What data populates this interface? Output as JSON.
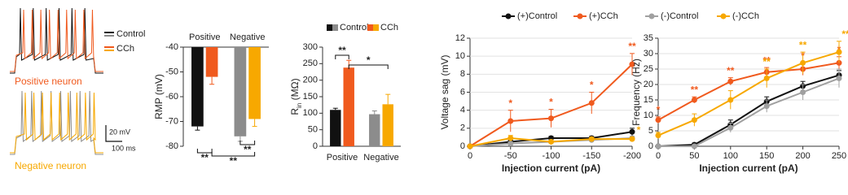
{
  "trace_panel": {
    "legend": [
      "Control",
      "CCh"
    ],
    "positive_label": "Positive neuron",
    "negative_label": "Negative neuron",
    "scale_v": "20 mV",
    "scale_t": "100 ms"
  },
  "chart_data": [
    {
      "type": "bar",
      "ylabel": "RMP (mV)",
      "category_labels_position": "top",
      "categories": [
        "Positive",
        "Negative"
      ],
      "series": [
        {
          "colors": [
            "#111111",
            "#8c8c8c"
          ],
          "values": [
            -72,
            -76
          ],
          "errors": [
            1.5,
            2
          ]
        },
        {
          "colors": [
            "#f05a1e",
            "#f7a800"
          ],
          "values": [
            -52,
            -69
          ],
          "errors": [
            3,
            3
          ]
        }
      ],
      "ylim": [
        -80,
        -40
      ],
      "yticks": [
        -40,
        -50,
        -60,
        -70,
        -80
      ],
      "annotations": [
        "**",
        "**",
        "**"
      ]
    },
    {
      "type": "bar",
      "ylabel": {
        "main": "R",
        "sub": "in",
        "unit": " (MΩ)"
      },
      "category_labels_position": "bottom",
      "categories": [
        "Positive",
        "Negative"
      ],
      "series": [
        {
          "name": "Control",
          "colors": [
            "#111111",
            "#8c8c8c"
          ],
          "values": [
            110,
            97
          ],
          "errors": [
            5,
            10
          ]
        },
        {
          "name": "CCh",
          "colors": [
            "#f05a1e",
            "#f7a800"
          ],
          "values": [
            238,
            127
          ],
          "errors": [
            22,
            30
          ]
        }
      ],
      "ylim": [
        0,
        300
      ],
      "yticks": [
        0,
        50,
        100,
        150,
        200,
        250,
        300
      ],
      "annotations": [
        "**",
        "*"
      ]
    },
    {
      "type": "line",
      "ylabel": "Voltage sag (mV)",
      "xlabel": "Injection current (pA)",
      "x": [
        0,
        -50,
        -100,
        -150,
        -200
      ],
      "xlim": [
        0,
        -200
      ],
      "xticks": [
        0,
        -50,
        -100,
        -150,
        -200
      ],
      "ylim": [
        0,
        12
      ],
      "yticks": [
        0,
        2,
        4,
        6,
        8,
        10,
        12
      ],
      "series": [
        {
          "name": "(+)Control",
          "color": "#111111",
          "values": [
            0,
            0.5,
            0.9,
            0.9,
            1.6
          ],
          "errors": [
            0,
            0.2,
            0.2,
            0.2,
            0.4
          ],
          "point_labels": [
            null,
            null,
            null,
            null,
            null
          ]
        },
        {
          "name": "(+)CCh",
          "color": "#f05a1e",
          "values": [
            0,
            2.8,
            3.1,
            4.8,
            9.1
          ],
          "errors": [
            0,
            1.2,
            1,
            1.2,
            1.2
          ],
          "point_labels": [
            null,
            "*",
            "*",
            "*",
            "**"
          ]
        },
        {
          "name": "(-)Control",
          "color": "#a0a0a0",
          "values": [
            0,
            0.3,
            0.5,
            0.7,
            0.9
          ],
          "errors": [
            0,
            0.2,
            0.2,
            0.2,
            0.2
          ],
          "point_labels": [
            null,
            null,
            null,
            null,
            null
          ]
        },
        {
          "name": "(-)CCh",
          "color": "#f7a800",
          "values": [
            0,
            0.9,
            0.5,
            0.8,
            0.8
          ],
          "errors": [
            0,
            0.3,
            0.2,
            0.2,
            0.2
          ],
          "point_labels": [
            null,
            null,
            null,
            null,
            "*"
          ]
        }
      ]
    },
    {
      "type": "line",
      "ylabel": "Frequency (Hz)",
      "xlabel": "Injection current (pA)",
      "x": [
        0,
        50,
        100,
        150,
        200,
        250
      ],
      "xlim": [
        0,
        250
      ],
      "xticks": [
        0,
        50,
        100,
        150,
        200,
        250
      ],
      "ylim": [
        0,
        35
      ],
      "yticks": [
        0,
        5,
        10,
        15,
        20,
        25,
        30,
        35
      ],
      "series": [
        {
          "color": "#111111",
          "values": [
            0,
            0.5,
            7,
            14.5,
            19.5,
            23
          ],
          "errors": [
            0,
            0.5,
            1.5,
            1.5,
            1.5,
            1.5
          ],
          "point_labels": [
            null,
            null,
            null,
            null,
            null,
            null
          ]
        },
        {
          "color": "#f05a1e",
          "values": [
            8.5,
            15,
            21,
            24,
            25,
            27
          ],
          "errors": [
            1,
            1,
            1.2,
            1.5,
            2,
            2
          ],
          "point_labels": [
            "*",
            "**",
            "**",
            "**",
            "*",
            "*"
          ]
        },
        {
          "color": "#a0a0a0",
          "values": [
            0,
            0,
            6,
            13,
            17.5,
            22
          ],
          "errors": [
            0,
            0.5,
            1.5,
            2,
            2.5,
            3
          ],
          "point_labels": [
            null,
            null,
            null,
            null,
            null,
            null
          ]
        },
        {
          "color": "#f7a800",
          "values": [
            3.5,
            8.5,
            15,
            22,
            27,
            30.5
          ],
          "errors": [
            1,
            2,
            3,
            3,
            3.5,
            3.5
          ],
          "point_labels": [
            null,
            null,
            null,
            "**",
            "**",
            "**"
          ]
        }
      ]
    }
  ]
}
